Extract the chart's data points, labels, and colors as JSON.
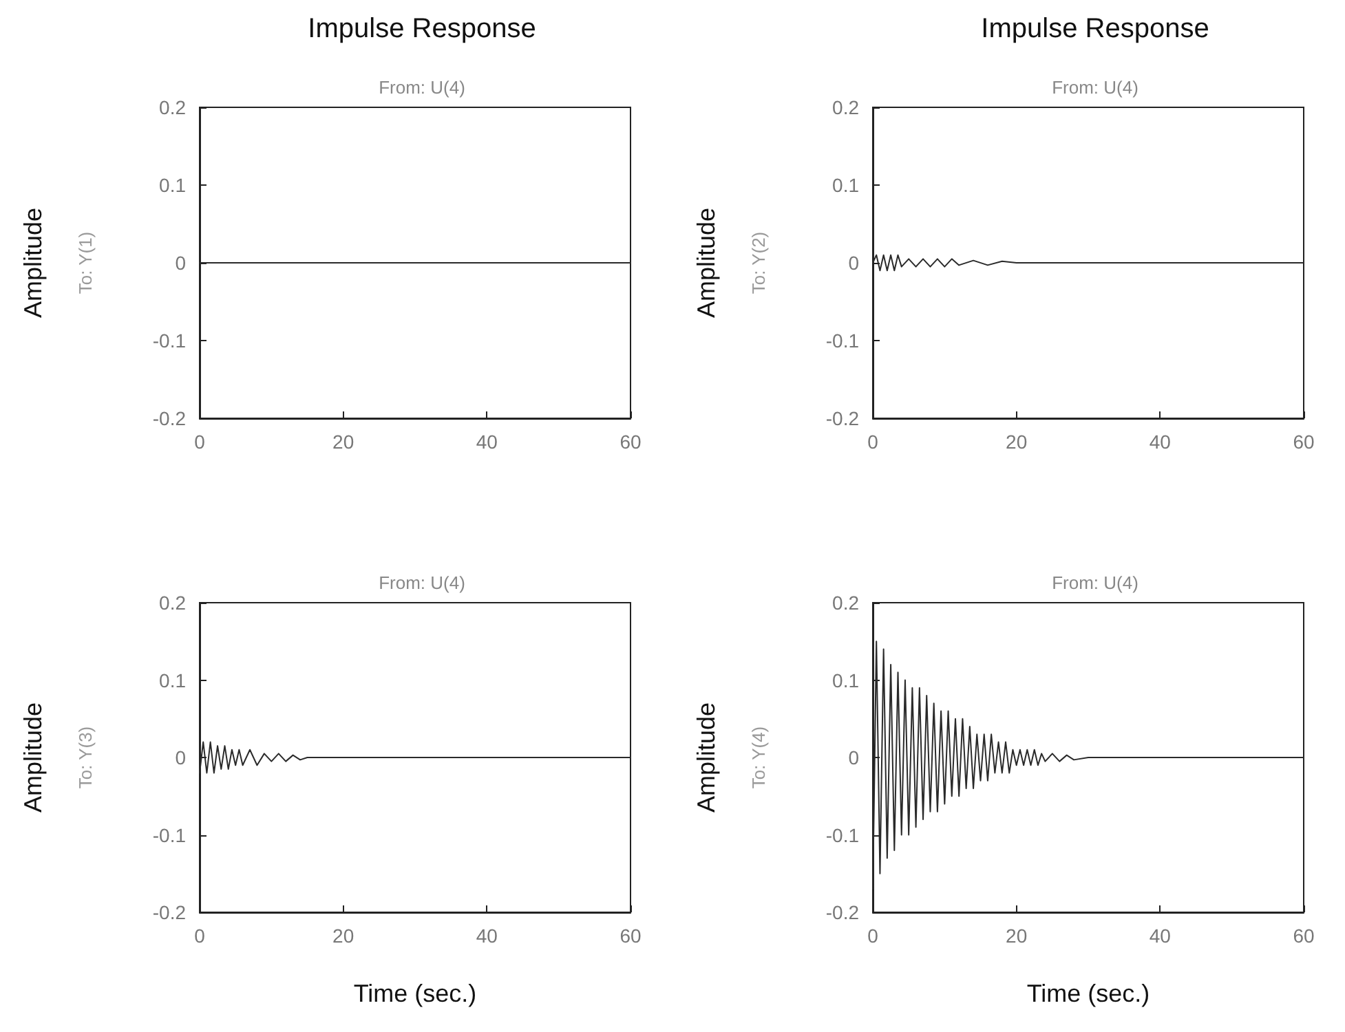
{
  "chart_data": [
    {
      "type": "line",
      "title": "Impulse Response",
      "subtitle": "From: U(4)",
      "ylabel": "Amplitude",
      "annotations": [
        "To: Y(1)"
      ],
      "x": [
        0,
        5,
        10,
        15,
        20,
        25,
        30,
        35,
        40,
        45,
        50,
        55,
        60
      ],
      "series": [
        {
          "color": "#2a2a2a",
          "values": [
            0,
            0,
            0,
            0,
            0,
            0,
            0,
            0,
            0,
            0,
            0,
            0,
            0
          ]
        }
      ],
      "xlim": [
        0,
        60
      ],
      "xticks": [
        0,
        20,
        40,
        60
      ],
      "ylim": [
        -0.2,
        0.2
      ],
      "yticks": [
        -0.2,
        -0.1,
        0,
        0.1,
        0.2
      ],
      "marker": "none",
      "line_style": "solid"
    },
    {
      "type": "line",
      "title": "Impulse Response",
      "subtitle": "From: U(4)",
      "ylabel": "Amplitude",
      "annotations": [
        "To: Y(2)"
      ],
      "x": [
        0,
        0.5,
        1,
        1.5,
        2,
        2.5,
        3,
        3.5,
        4,
        5,
        6,
        7,
        8,
        9,
        10,
        11,
        12,
        14,
        16,
        18,
        20,
        25,
        30,
        35,
        40,
        45,
        50,
        55,
        60
      ],
      "series": [
        {
          "color": "#2a2a2a",
          "values": [
            0,
            0.01,
            -0.01,
            0.01,
            -0.01,
            0.01,
            -0.01,
            0.01,
            -0.005,
            0.005,
            -0.005,
            0.005,
            -0.005,
            0.005,
            -0.005,
            0.005,
            -0.003,
            0.003,
            -0.003,
            0.002,
            0,
            0,
            0,
            0,
            0,
            0,
            0,
            0,
            0
          ]
        }
      ],
      "xlim": [
        0,
        60
      ],
      "xticks": [
        0,
        20,
        40,
        60
      ],
      "ylim": [
        -0.2,
        0.2
      ],
      "yticks": [
        -0.2,
        -0.1,
        0,
        0.1,
        0.2
      ],
      "marker": "none",
      "line_style": "solid"
    },
    {
      "type": "line",
      "subtitle": "From: U(4)",
      "ylabel": "Amplitude",
      "xlabel": "Time (sec.)",
      "annotations": [
        "To: Y(3)"
      ],
      "x": [
        0,
        0.5,
        1,
        1.5,
        2,
        2.5,
        3,
        3.5,
        4,
        4.5,
        5,
        5.5,
        6,
        7,
        8,
        9,
        10,
        11,
        12,
        13,
        14,
        15,
        20,
        30,
        40,
        50,
        60
      ],
      "series": [
        {
          "color": "#2a2a2a",
          "values": [
            -0.02,
            0.02,
            -0.02,
            0.02,
            -0.02,
            0.015,
            -0.015,
            0.015,
            -0.015,
            0.01,
            -0.01,
            0.01,
            -0.01,
            0.01,
            -0.01,
            0.005,
            -0.005,
            0.005,
            -0.005,
            0.003,
            -0.003,
            0,
            0,
            0,
            0,
            0,
            0
          ]
        }
      ],
      "xlim": [
        0,
        60
      ],
      "xticks": [
        0,
        20,
        40,
        60
      ],
      "ylim": [
        -0.2,
        0.2
      ],
      "yticks": [
        -0.2,
        -0.1,
        0,
        0.1,
        0.2
      ],
      "marker": "none",
      "line_style": "solid"
    },
    {
      "type": "line",
      "subtitle": "From: U(4)",
      "ylabel": "Amplitude",
      "xlabel": "Time (sec.)",
      "annotations": [
        "To: Y(4)"
      ],
      "x": [
        0,
        0.5,
        1,
        1.5,
        2,
        2.5,
        3,
        3.5,
        4,
        4.5,
        5,
        5.5,
        6,
        6.5,
        7,
        7.5,
        8,
        8.5,
        9,
        9.5,
        10,
        10.5,
        11,
        11.5,
        12,
        12.5,
        13,
        13.5,
        14,
        14.5,
        15,
        15.5,
        16,
        16.5,
        17,
        17.5,
        18,
        18.5,
        19,
        19.5,
        20,
        20.5,
        21,
        21.5,
        22,
        22.5,
        23,
        23.5,
        24,
        25,
        26,
        27,
        28,
        30,
        40,
        50,
        60
      ],
      "series": [
        {
          "color": "#2a2a2a",
          "values": [
            -0.17,
            0.15,
            -0.15,
            0.14,
            -0.13,
            0.12,
            -0.12,
            0.11,
            -0.1,
            0.1,
            -0.1,
            0.09,
            -0.09,
            0.09,
            -0.08,
            0.08,
            -0.07,
            0.07,
            -0.07,
            0.06,
            -0.06,
            0.06,
            -0.05,
            0.05,
            -0.05,
            0.05,
            -0.04,
            0.04,
            -0.04,
            0.03,
            -0.03,
            0.03,
            -0.03,
            0.03,
            -0.02,
            0.02,
            -0.02,
            0.02,
            -0.02,
            0.01,
            -0.01,
            0.01,
            -0.01,
            0.01,
            -0.01,
            0.01,
            -0.01,
            0.005,
            -0.005,
            0.005,
            -0.005,
            0.003,
            -0.003,
            0,
            0,
            0,
            0
          ]
        }
      ],
      "xlim": [
        0,
        60
      ],
      "xticks": [
        0,
        20,
        40,
        60
      ],
      "ylim": [
        -0.2,
        0.2
      ],
      "yticks": [
        -0.2,
        -0.1,
        0,
        0.1,
        0.2
      ],
      "marker": "none",
      "line_style": "solid"
    }
  ]
}
